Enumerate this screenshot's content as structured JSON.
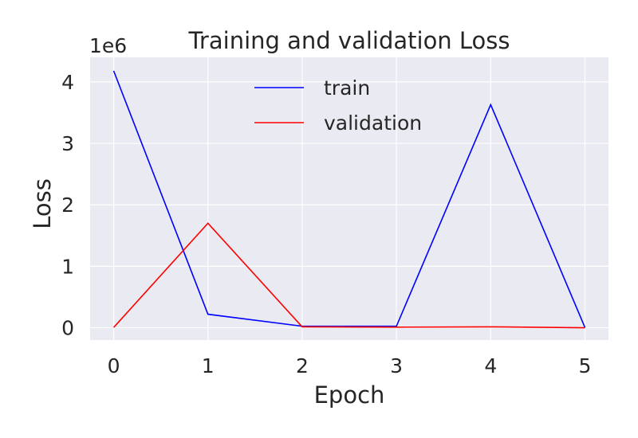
{
  "chart_data": {
    "type": "line",
    "title": "Training and validation  Loss",
    "xlabel": "Epoch",
    "ylabel": "Loss",
    "y_offset_label": "1e6",
    "x": [
      0,
      1,
      2,
      3,
      4,
      5
    ],
    "xlim": [
      -0.25,
      5.25
    ],
    "ylim": [
      -200000,
      4400000
    ],
    "x_ticks": [
      0,
      1,
      2,
      3,
      4,
      5
    ],
    "x_tick_labels": [
      "0",
      "1",
      "2",
      "3",
      "4",
      "5"
    ],
    "y_ticks": [
      0,
      1000000,
      2000000,
      3000000,
      4000000
    ],
    "y_tick_labels": [
      "0",
      "1",
      "2",
      "3",
      "4"
    ],
    "grid": true,
    "legend_position": "top-center",
    "series": [
      {
        "name": "train",
        "color": "#0000ff",
        "values": [
          4180000,
          220000,
          25000,
          25000,
          3630000,
          5000
        ]
      },
      {
        "name": "validation",
        "color": "#ff0000",
        "values": [
          5000,
          1700000,
          15000,
          10000,
          15000,
          0
        ]
      }
    ]
  }
}
